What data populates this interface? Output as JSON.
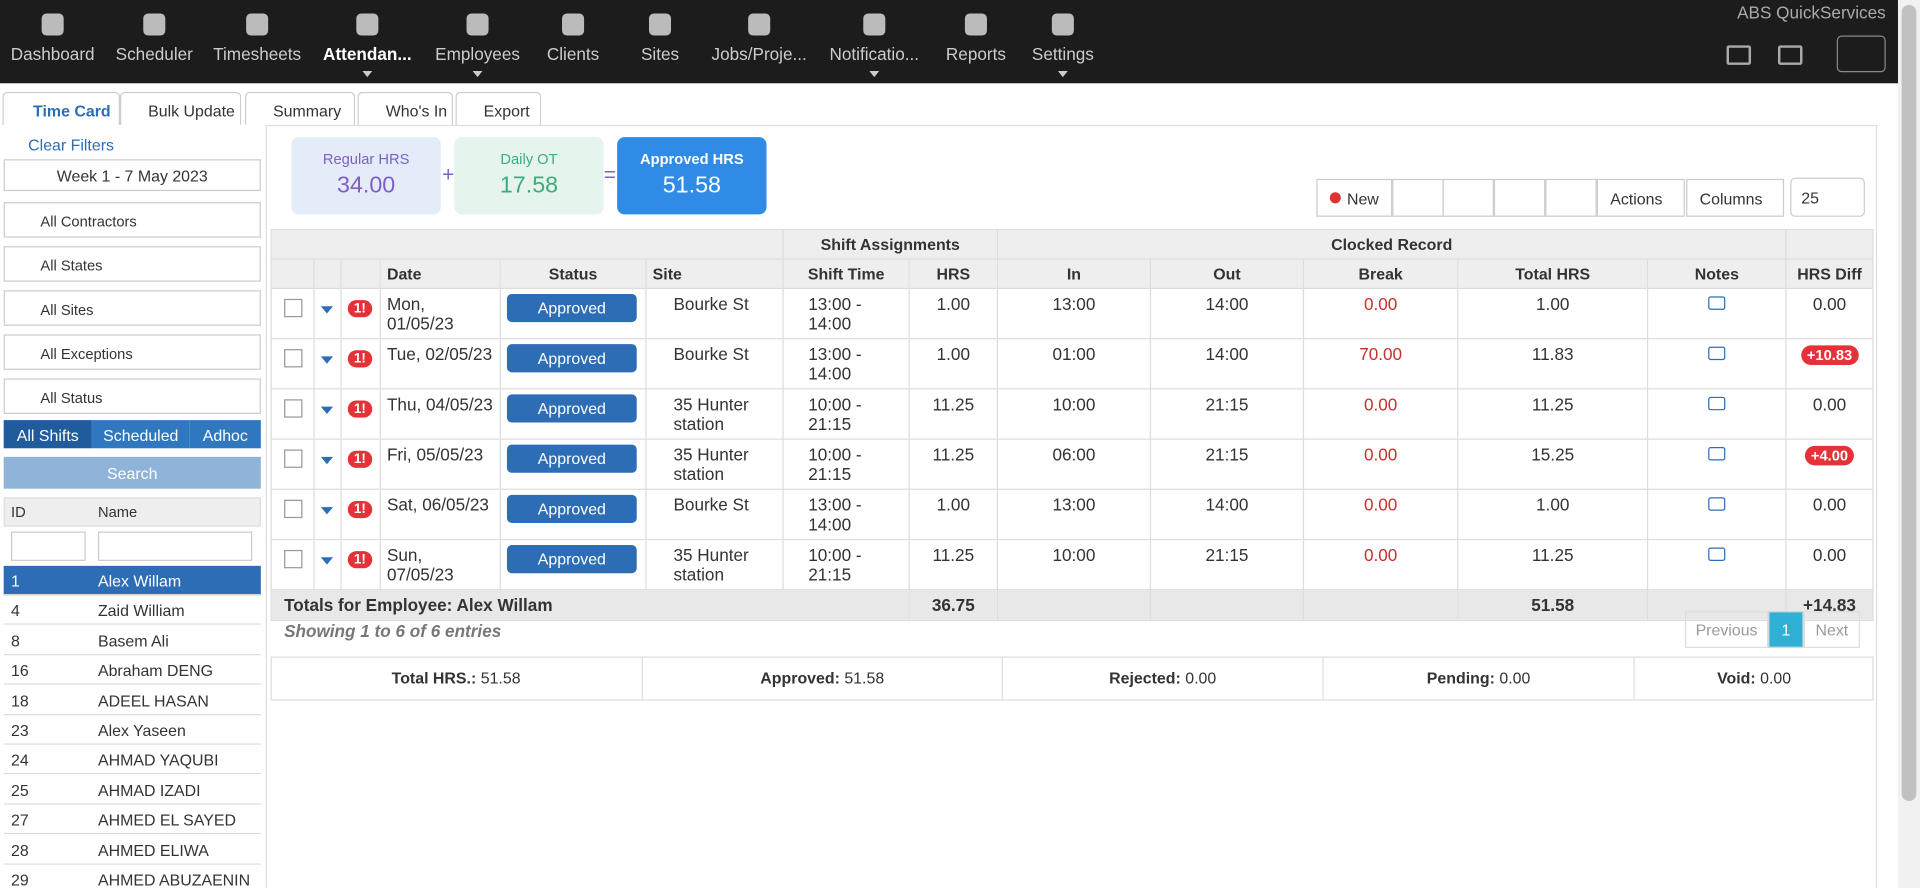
{
  "brand": "ABS QuickServices",
  "nav": [
    "Dashboard",
    "Scheduler",
    "Timesheets",
    "Attendan...",
    "Employees",
    "Clients",
    "Sites",
    "Jobs/Proje...",
    "Notificatio...",
    "Reports",
    "Settings"
  ],
  "tabs": [
    "Time Card",
    "Bulk Update",
    "Summary",
    "Who's In",
    "Export"
  ],
  "filters": {
    "clear": "Clear Filters",
    "week": "Week 1 - 7 May 2023",
    "selects": [
      "All Contractors",
      "All States",
      "All Sites",
      "All Exceptions",
      "All Status"
    ],
    "shift_types": [
      "All Shifts",
      "Scheduled",
      "Adhoc"
    ],
    "search": "Search"
  },
  "employee_list": {
    "headers": [
      "ID",
      "Name"
    ],
    "rows": [
      [
        "1",
        "Alex Willam"
      ],
      [
        "4",
        "Zaid William"
      ],
      [
        "8",
        "Basem Ali"
      ],
      [
        "16",
        "Abraham DENG"
      ],
      [
        "18",
        "ADEEL HASAN"
      ],
      [
        "23",
        "Alex Yaseen"
      ],
      [
        "24",
        "AHMAD YAQUBI"
      ],
      [
        "25",
        "AHMAD IZADI"
      ],
      [
        "27",
        "AHMED EL SAYED"
      ],
      [
        "28",
        "AHMED ELIWA"
      ],
      [
        "29",
        "AHMED ABUZAENIN"
      ]
    ]
  },
  "summary": {
    "boxes": [
      {
        "label": "Regular HRS",
        "value": "34.00"
      },
      {
        "label": "Daily OT",
        "value": "17.58"
      },
      {
        "label": "Approved HRS",
        "value": "51.58"
      }
    ],
    "operators": [
      "+",
      "="
    ]
  },
  "toolbar": {
    "new": "New",
    "actions": "Actions",
    "columns": "Columns",
    "page_size": "25"
  },
  "table": {
    "group_headers": [
      "Shift Assignments",
      "Clocked Record"
    ],
    "headers": [
      "Date",
      "Status",
      "Site",
      "Shift Time",
      "HRS",
      "In",
      "Out",
      "Break",
      "Total HRS",
      "Notes",
      "HRS Diff"
    ],
    "flag": "1!",
    "rows": [
      {
        "date": "Mon, 01/05/23",
        "status": "Approved",
        "site": "Bourke St",
        "shift": "13:00 - 14:00",
        "hrs": "1.00",
        "in": "13:00",
        "out": "14:00",
        "break": "0.00",
        "total": "1.00",
        "diff": "0.00"
      },
      {
        "date": "Tue, 02/05/23",
        "status": "Approved",
        "site": "Bourke St",
        "shift": "13:00 - 14:00",
        "hrs": "1.00",
        "in": "01:00",
        "out": "14:00",
        "break": "70.00",
        "total": "11.83",
        "diff": "+10.83"
      },
      {
        "date": "Thu, 04/05/23",
        "status": "Approved",
        "site": "35 Hunter station",
        "shift": "10:00 - 21:15",
        "hrs": "11.25",
        "in": "10:00",
        "out": "21:15",
        "break": "0.00",
        "total": "11.25",
        "diff": "0.00"
      },
      {
        "date": "Fri, 05/05/23",
        "status": "Approved",
        "site": "35 Hunter station",
        "shift": "10:00 - 21:15",
        "hrs": "11.25",
        "in": "06:00",
        "out": "21:15",
        "break": "0.00",
        "total": "15.25",
        "diff": "+4.00"
      },
      {
        "date": "Sat, 06/05/23",
        "status": "Approved",
        "site": "Bourke St",
        "shift": "13:00 - 14:00",
        "hrs": "1.00",
        "in": "13:00",
        "out": "14:00",
        "break": "0.00",
        "total": "1.00",
        "diff": "0.00"
      },
      {
        "date": "Sun, 07/05/23",
        "status": "Approved",
        "site": "35 Hunter station",
        "shift": "10:00 - 21:15",
        "hrs": "11.25",
        "in": "10:00",
        "out": "21:15",
        "break": "0.00",
        "total": "11.25",
        "diff": "0.00"
      }
    ],
    "totals": {
      "label": "Totals for Employee: Alex Willam",
      "hrs": "36.75",
      "total": "51.58",
      "diff": "+14.83"
    }
  },
  "info": "Showing 1 to 6 of 6 entries",
  "pagination": [
    "Previous",
    "1",
    "Next"
  ],
  "footer": [
    {
      "label": "Total HRS.:",
      "value": "51.58"
    },
    {
      "label": "Approved:",
      "value": "51.58"
    },
    {
      "label": "Rejected:",
      "value": "0.00"
    },
    {
      "label": "Pending:",
      "value": "0.00"
    },
    {
      "label": "Void:",
      "value": "0.00"
    }
  ]
}
